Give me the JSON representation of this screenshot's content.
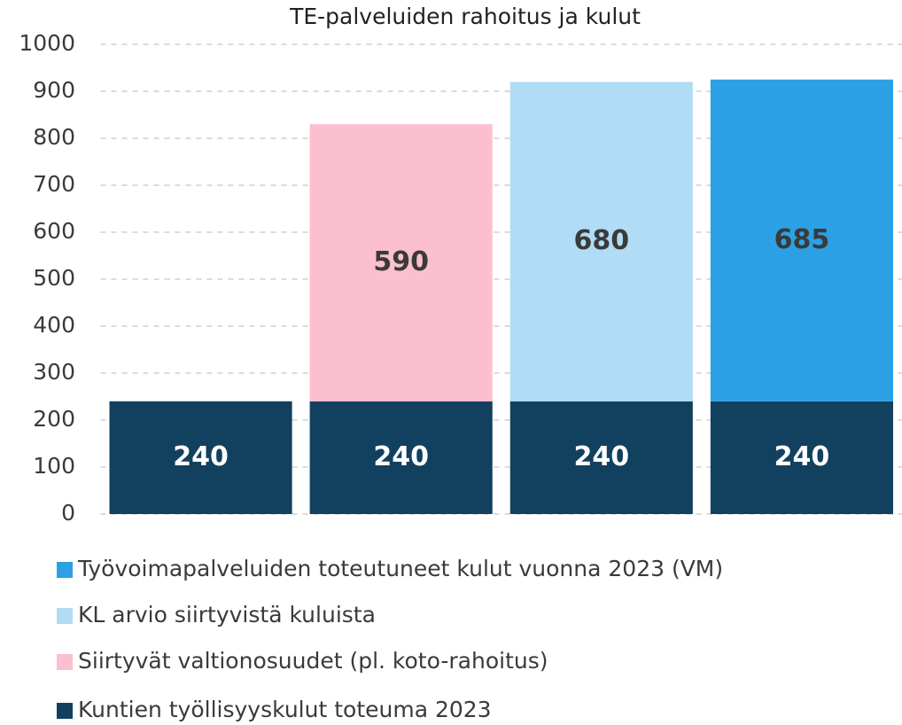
{
  "chart_data": {
    "type": "stacked_bar",
    "title": "TE-palveluiden rahoitus ja kulut",
    "categories": [
      null,
      null,
      null,
      null
    ],
    "series": [
      {
        "name": "Kuntien työllisyyskulut toteuma 2023",
        "color": "#12405f",
        "values": [
          240,
          240,
          240,
          240
        ]
      },
      {
        "name": "Siirtyvät valtionosuudet (pl. koto-rahoitus)",
        "color": "#fcbfcf",
        "values": [
          null,
          590,
          null,
          null
        ]
      },
      {
        "name": "KL arvio siirtyvistä kuluista",
        "color": "#b0dcf5",
        "values": [
          null,
          null,
          680,
          null
        ]
      },
      {
        "name": "Työvoimapalveluiden toteutuneet kulut vuonna 2023 (VM)",
        "color": "#2ba0e5",
        "values": [
          null,
          null,
          null,
          685
        ]
      }
    ],
    "ylim": [
      0,
      1000
    ],
    "yticks": [
      0,
      100,
      200,
      300,
      400,
      500,
      600,
      700,
      800,
      900,
      1000
    ],
    "grid": true,
    "legend": "bottom"
  }
}
